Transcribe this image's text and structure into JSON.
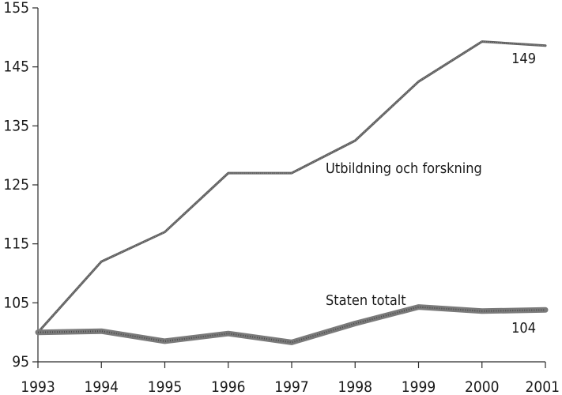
{
  "chart_data": {
    "type": "line",
    "x": [
      1993,
      1994,
      1995,
      1996,
      1997,
      1998,
      1999,
      2000,
      2001
    ],
    "xlim": [
      1993,
      2001
    ],
    "ylim": [
      95,
      155
    ],
    "y_ticks": [
      95,
      105,
      115,
      125,
      135,
      145,
      155
    ],
    "x_tick_labels": [
      "1993",
      "1994",
      "1995",
      "1996",
      "1997",
      "1998",
      "1999",
      "2000",
      "2001"
    ],
    "y_tick_labels": [
      "95",
      "105",
      "115",
      "125",
      "135",
      "145",
      "155"
    ],
    "series": [
      {
        "name": "Utbildning och forskning",
        "values": [
          100,
          112,
          117,
          127,
          127,
          132.5,
          142.5,
          149.3,
          148.6
        ],
        "end_label": "149",
        "color": "#555555",
        "style": "thin"
      },
      {
        "name": "Staten totalt",
        "values": [
          100,
          100.2,
          98.5,
          99.8,
          98.3,
          101.5,
          104.3,
          103.6,
          103.8
        ],
        "end_label": "104",
        "color": "#6a6a6a",
        "style": "thick"
      }
    ],
    "grid": false,
    "legend": "inline labels"
  }
}
